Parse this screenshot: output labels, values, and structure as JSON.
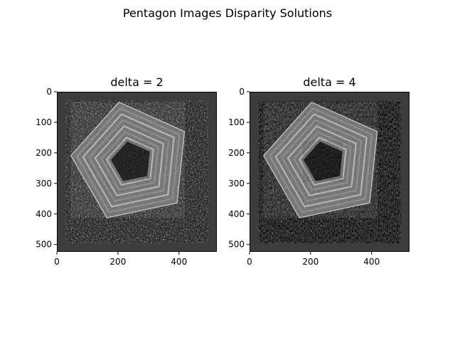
{
  "figure": {
    "title": "Pentagon Images Disparity Solutions"
  },
  "chart_data": [
    {
      "type": "heatmap",
      "title": "delta = 2",
      "xlabel": "",
      "ylabel": "",
      "xlim": [
        0,
        524
      ],
      "ylim": [
        524,
        0
      ],
      "xticks": [
        0,
        200,
        400
      ],
      "yticks": [
        0,
        100,
        200,
        300,
        400,
        500
      ],
      "colormap": "gray",
      "border_color": "#3c3c3c",
      "image_extent": [
        30,
        495,
        30,
        495
      ],
      "content": "Gray-scale disparity map of the Pentagon: dark border, nested pentagon rings in mid gray, dark center courtyard, noisy speckled surroundings."
    },
    {
      "type": "heatmap",
      "title": "delta = 4",
      "xlabel": "",
      "ylabel": "",
      "xlim": [
        0,
        524
      ],
      "ylim": [
        524,
        0
      ],
      "xticks": [
        0,
        200,
        400
      ],
      "yticks": [
        0,
        100,
        200,
        300,
        400,
        500
      ],
      "colormap": "gray",
      "border_color": "#3c3c3c",
      "image_extent": [
        30,
        495,
        30,
        495
      ],
      "content": "Gray-scale disparity map of the Pentagon with smoother rings and less speckle than delta = 2."
    }
  ]
}
